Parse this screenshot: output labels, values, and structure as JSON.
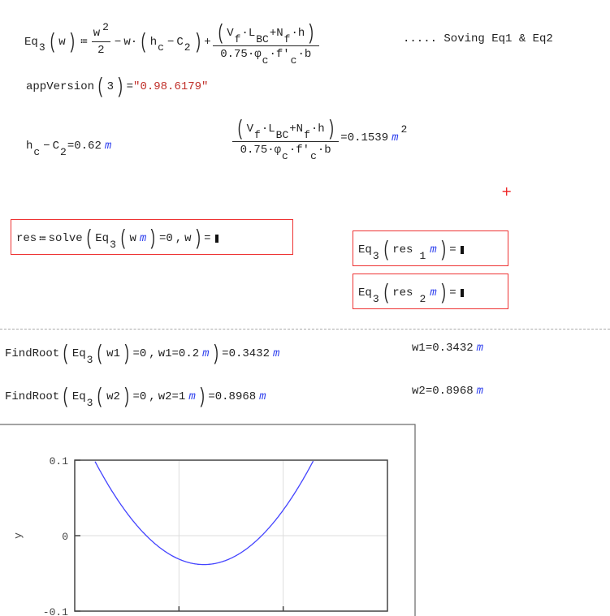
{
  "eq_def": {
    "func": "Eq",
    "func_sub": "3",
    "arg": "w",
    "assign": "≔",
    "w": "w",
    "two_exp": "2",
    "two_den": "2",
    "minus": "−",
    "w2": "w",
    "hc": "h",
    "c_sub": "c",
    "C": "C",
    "C_sub": "2",
    "plus": "+",
    "num": {
      "V": "V",
      "f": "f",
      "L": "L",
      "BC": "BC",
      "N": "N",
      "f2": "f",
      "h": "h"
    },
    "den": {
      "k": "0.75",
      "phi": "φ",
      "c": "c",
      "fp": "f'",
      "c2": "c",
      "b": "b"
    }
  },
  "comment": "..... Soving Eq1 & Eq2",
  "app_version": {
    "call": "appVersion",
    "arg": "3",
    "value": "\"0.98.6179\""
  },
  "hc_minus_c2": {
    "value": "0.62",
    "unit": "m"
  },
  "ratio": {
    "value": "0.1539",
    "unit": "m",
    "exp": "2"
  },
  "solve_region": {
    "lhs": "res",
    "fn": "solve",
    "inner": "Eq",
    "sub": "3",
    "arg": "w",
    "unit": "m",
    "eq0": "=0",
    "sep": ",",
    "var": "w"
  },
  "eq_res1": {
    "fn": "Eq",
    "sub": "3",
    "res": "res",
    "idx": "1",
    "unit": "m"
  },
  "eq_res2": {
    "fn": "Eq",
    "sub": "3",
    "res": "res",
    "idx": "2",
    "unit": "m"
  },
  "findroot1": {
    "fn": "FindRoot",
    "eq": "Eq",
    "sub": "3",
    "var": "w1",
    "guess": "0.2",
    "unit": "m",
    "result": "0.3432"
  },
  "findroot2": {
    "fn": "FindRoot",
    "eq": "Eq",
    "sub": "3",
    "var": "w2",
    "guess": "1",
    "unit": "m",
    "result": "0.8968"
  },
  "w1_eval": {
    "var": "w1",
    "value": "0.3432",
    "unit": "m"
  },
  "w2_eval": {
    "var": "w2",
    "value": "0.8968",
    "unit": "m"
  },
  "colors": {
    "unit": "#3344ee",
    "string": "#c0302a",
    "error_box": "#ee3333",
    "curve": "#4444ff"
  },
  "chart_data": {
    "type": "line",
    "ylabel": "y",
    "xlim": [
      0,
      1.5
    ],
    "ylim": [
      -0.1,
      0.1
    ],
    "y_ticks": [
      "0.1",
      "0",
      "-0.1"
    ],
    "grid": true,
    "series": [
      {
        "function": "w^2/2 - 0.62*w + 0.1539",
        "color": "#4444ff"
      }
    ]
  }
}
